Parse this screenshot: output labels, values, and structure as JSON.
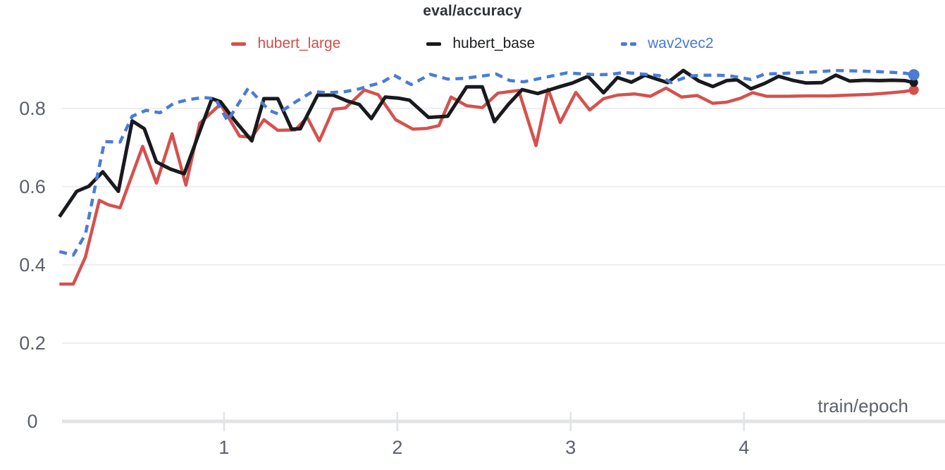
{
  "page": {
    "background": "#ffffff"
  },
  "header": {
    "title": "eval/accuracy"
  },
  "legend": {
    "items": [
      {
        "label": "hubert_large",
        "color": "#cf4e4c",
        "dashed": false
      },
      {
        "label": "hubert_base",
        "color": "#1a1c1f",
        "dashed": false
      },
      {
        "label": "wav2vec2",
        "color": "#4679d2",
        "dashed": true
      }
    ]
  },
  "axis": {
    "y_tick_labels": [
      "0",
      "0.2",
      "0.4",
      "0.6",
      "0.8"
    ],
    "y_tick_values": [
      0,
      0.2,
      0.4,
      0.6,
      0.8
    ],
    "x_tick_labels": [
      "1",
      "2",
      "3",
      "4"
    ],
    "x_tick_values": [
      1,
      2,
      3,
      4
    ],
    "tick_color": "#5b616c",
    "gridline_color": "#ecedef",
    "baseline_color": "#e2e3e6"
  },
  "chart_data": {
    "type": "line",
    "title": "eval/accuracy",
    "xlabel": "train/epoch",
    "ylabel": "",
    "xlim": [
      0.065,
      5.16
    ],
    "ylim": [
      0,
      0.915
    ],
    "grid": "horizontal-only",
    "legend_position": "top-center",
    "x_ticks": [
      1,
      2,
      3,
      4
    ],
    "y_ticks": [
      0,
      0.2,
      0.4,
      0.6,
      0.8
    ],
    "series": [
      {
        "name": "hubert_large",
        "color": "#d5514e",
        "dash": false,
        "line_width": 4.5,
        "marker_radius": 7,
        "points": [
          [
            0.05,
            0.351
          ],
          [
            0.13,
            0.351
          ],
          [
            0.2,
            0.42
          ],
          [
            0.28,
            0.565
          ],
          [
            0.33,
            0.554
          ],
          [
            0.4,
            0.546
          ],
          [
            0.53,
            0.703
          ],
          [
            0.61,
            0.609
          ],
          [
            0.7,
            0.735
          ],
          [
            0.78,
            0.604
          ],
          [
            0.86,
            0.762
          ],
          [
            0.98,
            0.811
          ],
          [
            1.09,
            0.729
          ],
          [
            1.16,
            0.726
          ],
          [
            1.23,
            0.771
          ],
          [
            1.31,
            0.744
          ],
          [
            1.41,
            0.745
          ],
          [
            1.48,
            0.777
          ],
          [
            1.55,
            0.717
          ],
          [
            1.63,
            0.798
          ],
          [
            1.7,
            0.801
          ],
          [
            1.81,
            0.847
          ],
          [
            1.89,
            0.835
          ],
          [
            1.99,
            0.771
          ],
          [
            2.09,
            0.747
          ],
          [
            2.17,
            0.749
          ],
          [
            2.24,
            0.756
          ],
          [
            2.31,
            0.829
          ],
          [
            2.4,
            0.807
          ],
          [
            2.49,
            0.802
          ],
          [
            2.58,
            0.839
          ],
          [
            2.7,
            0.846
          ],
          [
            2.8,
            0.705
          ],
          [
            2.87,
            0.849
          ],
          [
            2.94,
            0.764
          ],
          [
            3.03,
            0.841
          ],
          [
            3.11,
            0.796
          ],
          [
            3.19,
            0.825
          ],
          [
            3.27,
            0.834
          ],
          [
            3.37,
            0.837
          ],
          [
            3.46,
            0.831
          ],
          [
            3.55,
            0.852
          ],
          [
            3.64,
            0.829
          ],
          [
            3.73,
            0.833
          ],
          [
            3.82,
            0.813
          ],
          [
            3.9,
            0.816
          ],
          [
            3.98,
            0.826
          ],
          [
            4.05,
            0.84
          ],
          [
            4.13,
            0.831
          ],
          [
            4.25,
            0.831
          ],
          [
            4.37,
            0.832
          ],
          [
            4.49,
            0.832
          ],
          [
            4.61,
            0.834
          ],
          [
            4.73,
            0.836
          ],
          [
            4.85,
            0.84
          ],
          [
            4.92,
            0.843
          ],
          [
            4.98,
            0.847
          ]
        ]
      },
      {
        "name": "hubert_base",
        "color": "#181a1e",
        "dash": false,
        "line_width": 5,
        "marker_radius": 6,
        "points": [
          [
            0.05,
            0.523
          ],
          [
            0.15,
            0.588
          ],
          [
            0.22,
            0.601
          ],
          [
            0.3,
            0.638
          ],
          [
            0.39,
            0.588
          ],
          [
            0.47,
            0.768
          ],
          [
            0.54,
            0.748
          ],
          [
            0.61,
            0.663
          ],
          [
            0.69,
            0.645
          ],
          [
            0.77,
            0.633
          ],
          [
            0.85,
            0.73
          ],
          [
            0.93,
            0.825
          ],
          [
            0.98,
            0.817
          ],
          [
            1.06,
            0.77
          ],
          [
            1.16,
            0.717
          ],
          [
            1.23,
            0.825
          ],
          [
            1.31,
            0.825
          ],
          [
            1.39,
            0.747
          ],
          [
            1.44,
            0.748
          ],
          [
            1.54,
            0.834
          ],
          [
            1.63,
            0.834
          ],
          [
            1.71,
            0.819
          ],
          [
            1.78,
            0.81
          ],
          [
            1.85,
            0.774
          ],
          [
            1.93,
            0.829
          ],
          [
            2.01,
            0.826
          ],
          [
            2.07,
            0.821
          ],
          [
            2.18,
            0.777
          ],
          [
            2.29,
            0.78
          ],
          [
            2.4,
            0.855
          ],
          [
            2.49,
            0.855
          ],
          [
            2.56,
            0.766
          ],
          [
            2.64,
            0.81
          ],
          [
            2.72,
            0.848
          ],
          [
            2.81,
            0.838
          ],
          [
            2.94,
            0.856
          ],
          [
            3.01,
            0.865
          ],
          [
            3.1,
            0.882
          ],
          [
            3.19,
            0.84
          ],
          [
            3.27,
            0.879
          ],
          [
            3.35,
            0.867
          ],
          [
            3.43,
            0.885
          ],
          [
            3.49,
            0.876
          ],
          [
            3.56,
            0.866
          ],
          [
            3.65,
            0.897
          ],
          [
            3.74,
            0.87
          ],
          [
            3.82,
            0.856
          ],
          [
            3.9,
            0.871
          ],
          [
            3.96,
            0.873
          ],
          [
            4.04,
            0.85
          ],
          [
            4.12,
            0.864
          ],
          [
            4.2,
            0.882
          ],
          [
            4.28,
            0.872
          ],
          [
            4.36,
            0.865
          ],
          [
            4.45,
            0.866
          ],
          [
            4.53,
            0.885
          ],
          [
            4.61,
            0.87
          ],
          [
            4.7,
            0.872
          ],
          [
            4.78,
            0.871
          ],
          [
            4.86,
            0.872
          ],
          [
            4.93,
            0.871
          ],
          [
            4.98,
            0.866
          ]
        ]
      },
      {
        "name": "wav2vec2",
        "color": "#4a7cd6",
        "dash": true,
        "line_width": 4.5,
        "marker_radius": 8,
        "points": [
          [
            0.05,
            0.434
          ],
          [
            0.13,
            0.425
          ],
          [
            0.2,
            0.478
          ],
          [
            0.27,
            0.63
          ],
          [
            0.31,
            0.715
          ],
          [
            0.4,
            0.714
          ],
          [
            0.47,
            0.78
          ],
          [
            0.55,
            0.795
          ],
          [
            0.63,
            0.789
          ],
          [
            0.71,
            0.813
          ],
          [
            0.79,
            0.822
          ],
          [
            0.88,
            0.828
          ],
          [
            0.95,
            0.825
          ],
          [
            1.02,
            0.768
          ],
          [
            1.14,
            0.852
          ],
          [
            1.26,
            0.795
          ],
          [
            1.31,
            0.786
          ],
          [
            1.41,
            0.816
          ],
          [
            1.51,
            0.843
          ],
          [
            1.6,
            0.84
          ],
          [
            1.7,
            0.843
          ],
          [
            1.78,
            0.85
          ],
          [
            1.84,
            0.858
          ],
          [
            1.91,
            0.866
          ],
          [
            1.98,
            0.885
          ],
          [
            2.08,
            0.861
          ],
          [
            2.19,
            0.887
          ],
          [
            2.29,
            0.875
          ],
          [
            2.39,
            0.877
          ],
          [
            2.49,
            0.883
          ],
          [
            2.57,
            0.888
          ],
          [
            2.65,
            0.871
          ],
          [
            2.73,
            0.868
          ],
          [
            2.86,
            0.88
          ],
          [
            2.98,
            0.891
          ],
          [
            3.07,
            0.888
          ],
          [
            3.15,
            0.886
          ],
          [
            3.23,
            0.887
          ],
          [
            3.31,
            0.892
          ],
          [
            3.41,
            0.888
          ],
          [
            3.51,
            0.884
          ],
          [
            3.58,
            0.866
          ],
          [
            3.68,
            0.882
          ],
          [
            3.75,
            0.885
          ],
          [
            3.83,
            0.885
          ],
          [
            3.91,
            0.884
          ],
          [
            4.04,
            0.874
          ],
          [
            4.12,
            0.888
          ],
          [
            4.21,
            0.889
          ],
          [
            4.29,
            0.891
          ],
          [
            4.44,
            0.894
          ],
          [
            4.52,
            0.897
          ],
          [
            4.61,
            0.896
          ],
          [
            4.7,
            0.895
          ],
          [
            4.78,
            0.894
          ],
          [
            4.86,
            0.892
          ],
          [
            4.93,
            0.89
          ],
          [
            4.98,
            0.886
          ]
        ]
      }
    ]
  }
}
